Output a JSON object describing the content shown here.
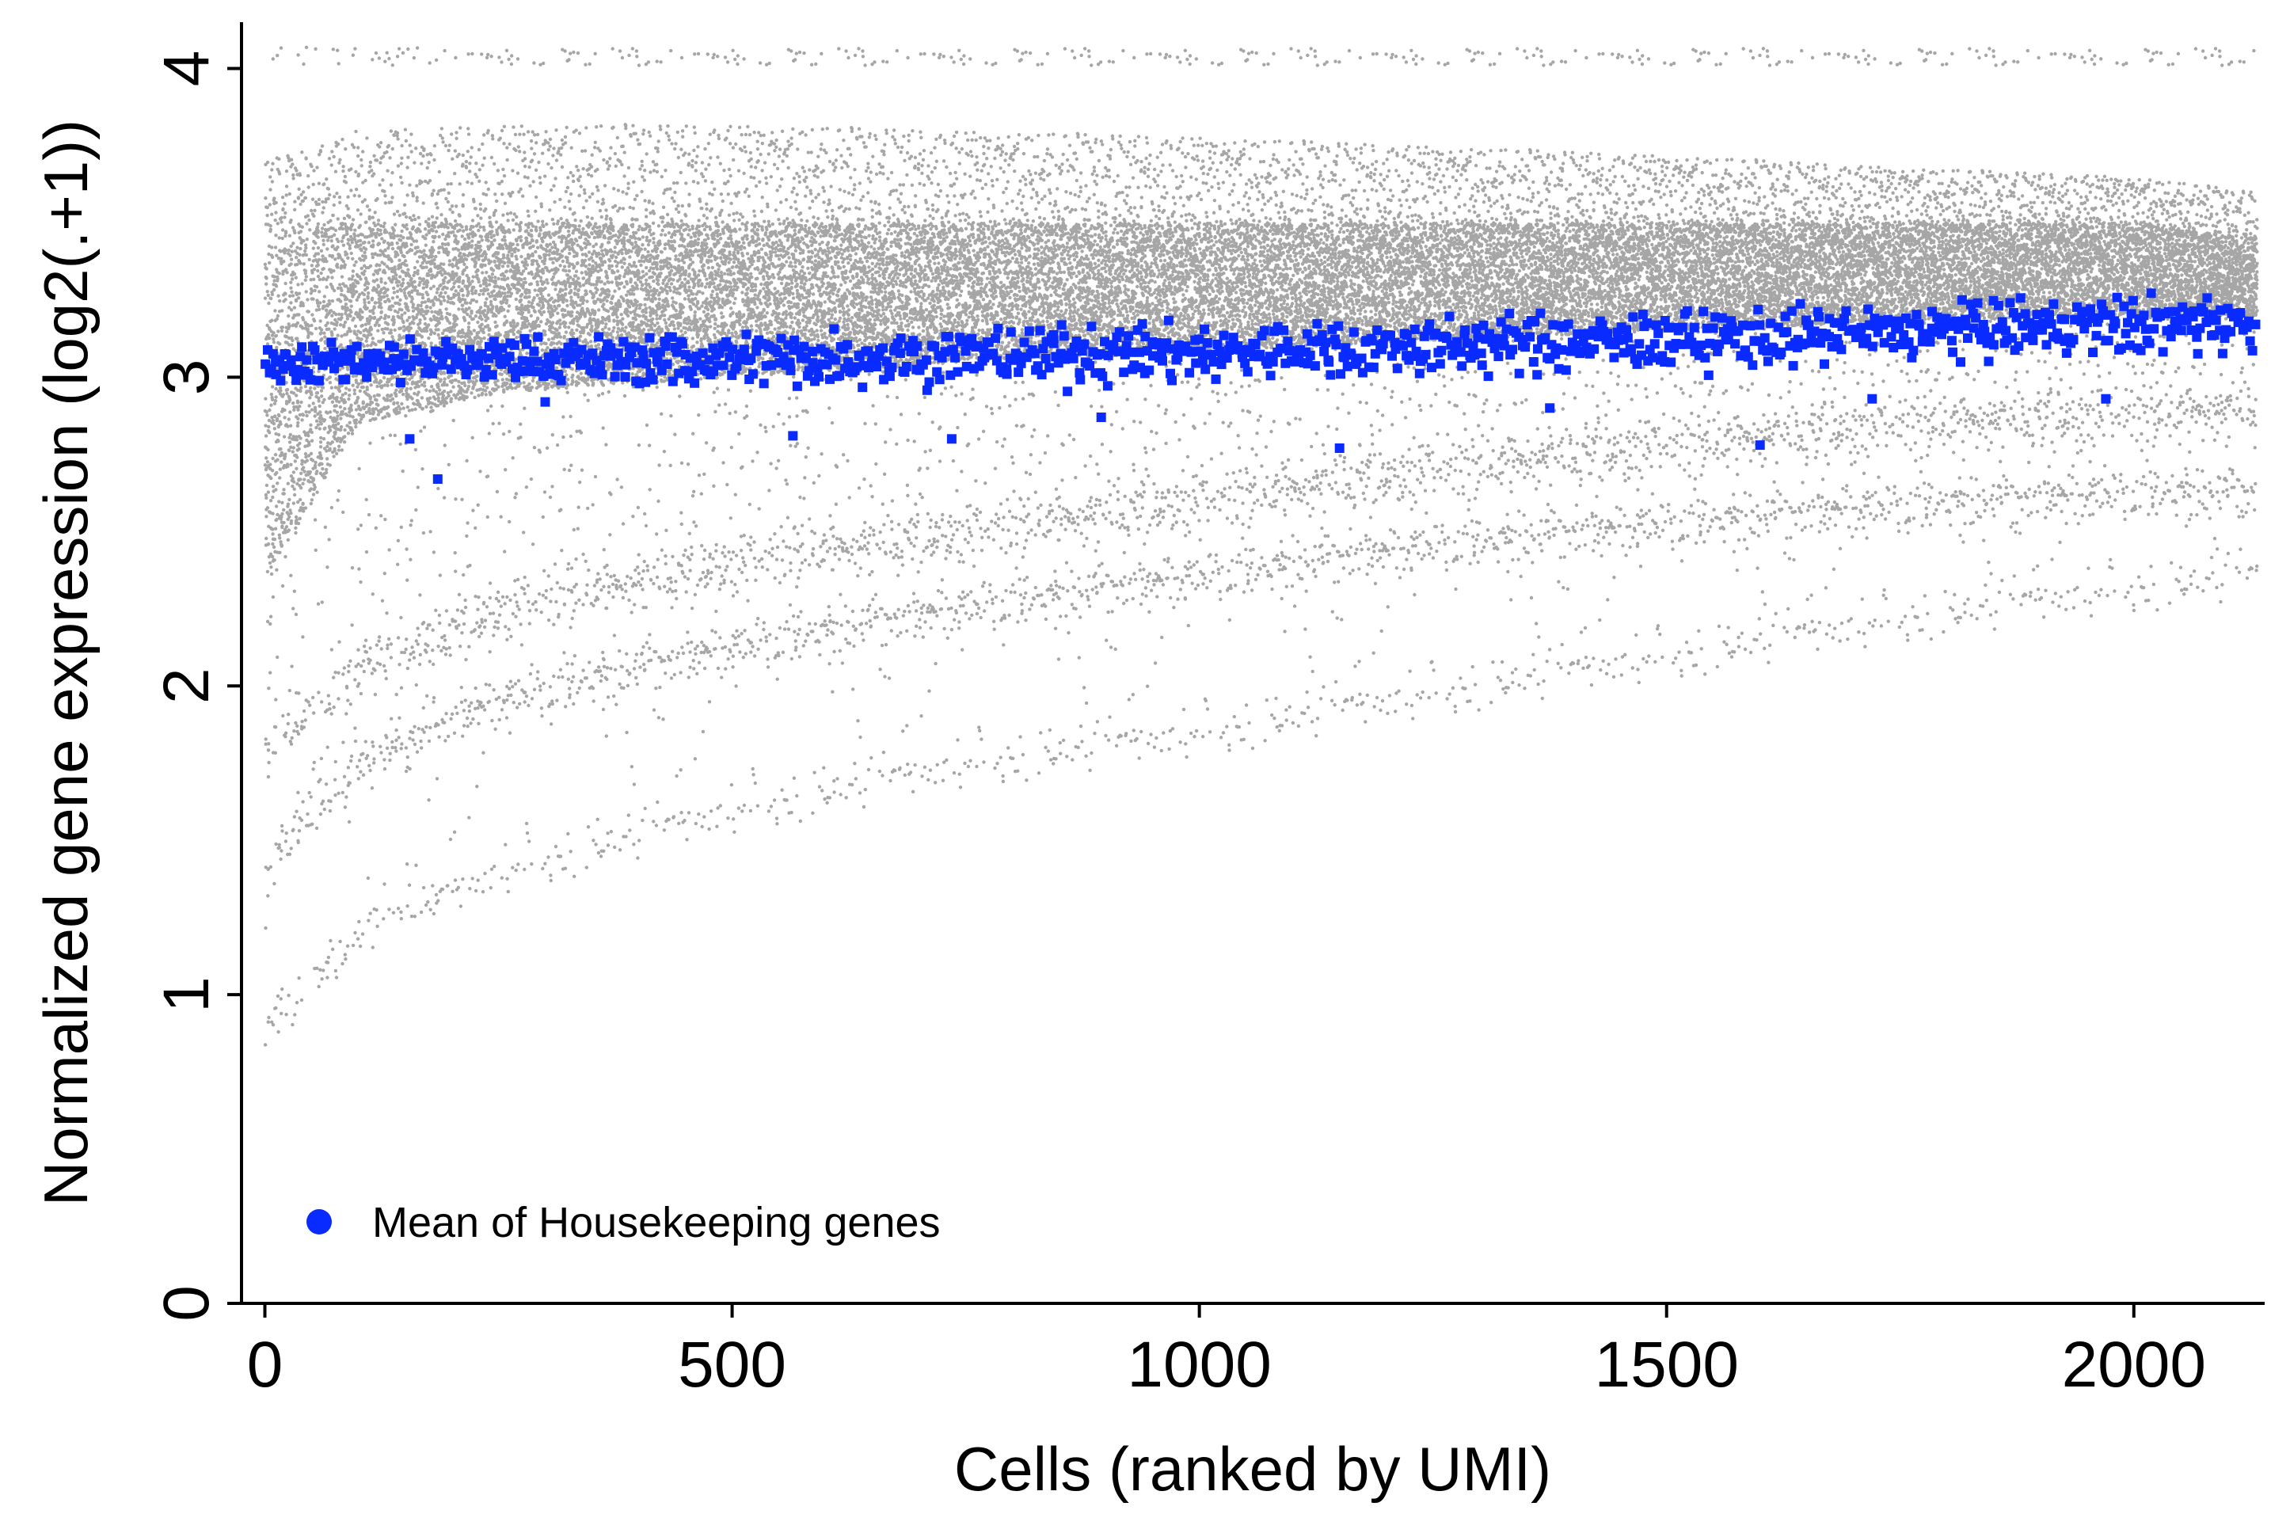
{
  "chart_data": {
    "type": "scatter",
    "xlabel": "Cells (ranked by UMI)",
    "ylabel": "Normalized gene expression (log2(.+1))",
    "xlim": [
      -25,
      2140
    ],
    "ylim": [
      0,
      4.15
    ],
    "x_ticks": [
      0,
      500,
      1000,
      1500,
      2000
    ],
    "y_ticks": [
      0,
      1,
      2,
      3,
      4
    ],
    "x_tick_labels": [
      "0",
      "500",
      "1000",
      "1500",
      "2000"
    ],
    "y_tick_labels": [
      "0",
      "1",
      "2",
      "3",
      "4"
    ],
    "legend": {
      "position": "bottom-left",
      "entries": [
        "Mean of Housekeeping genes"
      ]
    },
    "grid": false,
    "series": [
      {
        "name": "",
        "color": "#a6a6a6",
        "marker": "circle",
        "description_points": "per-gene expression for ~2130 cells",
        "envelope": {
          "x": [
            0,
            100,
            250,
            500,
            750,
            1000,
            1250,
            1500,
            1750,
            2000,
            2130
          ],
          "core_low": [
            2.35,
            2.85,
            2.95,
            3.0,
            3.05,
            3.08,
            3.12,
            3.15,
            3.18,
            3.2,
            3.2
          ],
          "core_high": [
            3.5,
            3.5,
            3.5,
            3.5,
            3.5,
            3.5,
            3.5,
            3.5,
            3.5,
            3.5,
            3.45
          ],
          "outer_high": [
            3.7,
            3.8,
            3.82,
            3.82,
            3.8,
            3.78,
            3.75,
            3.72,
            3.68,
            3.65,
            3.6
          ],
          "cap": 4.07,
          "lower_bands": [
            [
              0.9,
              1.2,
              1.4,
              1.6,
              1.75,
              1.85,
              1.98,
              2.1,
              2.22,
              2.32,
              2.36
            ],
            [
              1.4,
              1.75,
              1.95,
              2.12,
              2.25,
              2.35,
              2.45,
              2.52,
              2.58,
              2.62,
              2.62
            ],
            [
              1.8,
              2.05,
              2.25,
              2.4,
              2.5,
              2.6,
              2.7,
              2.78,
              2.85,
              2.88,
              2.9
            ]
          ]
        }
      },
      {
        "name": "Mean of Housekeeping genes",
        "color": "#0a2bff",
        "marker": "square",
        "trend": {
          "x": [
            0,
            500,
            1000,
            1500,
            2000,
            2130
          ],
          "y": [
            3.05,
            3.06,
            3.08,
            3.12,
            3.17,
            3.18
          ]
        },
        "outliers": [
          {
            "x": 155,
            "y": 2.8
          },
          {
            "x": 185,
            "y": 2.67
          },
          {
            "x": 565,
            "y": 2.81
          },
          {
            "x": 735,
            "y": 2.8
          },
          {
            "x": 1150,
            "y": 2.77
          },
          {
            "x": 1600,
            "y": 2.78
          },
          {
            "x": 1375,
            "y": 2.9
          },
          {
            "x": 1970,
            "y": 2.93
          },
          {
            "x": 1720,
            "y": 2.93
          },
          {
            "x": 300,
            "y": 2.92
          },
          {
            "x": 895,
            "y": 2.87
          }
        ]
      }
    ]
  }
}
